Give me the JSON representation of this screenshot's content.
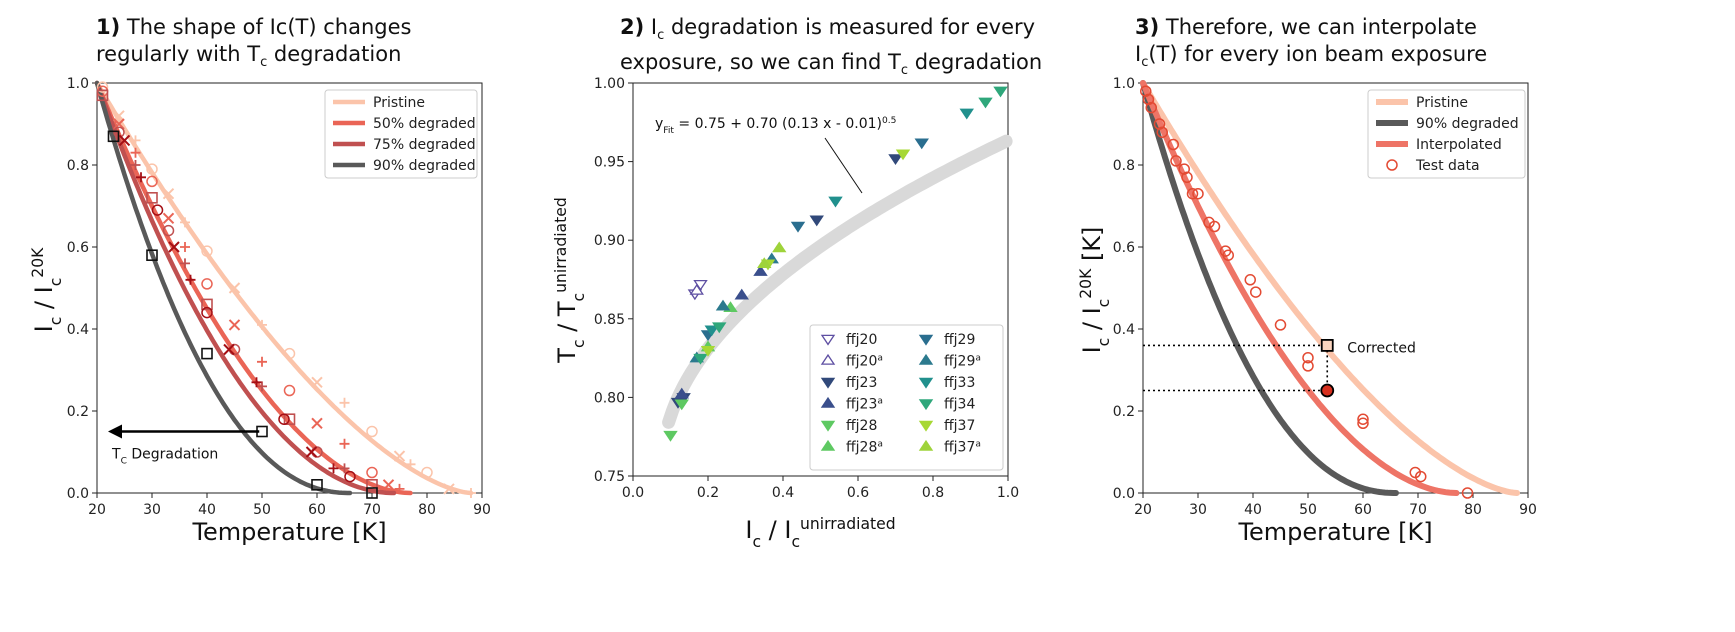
{
  "panels": [
    {
      "num": "1)",
      "line1": "The shape of Ic(T) changes",
      "line2": "regularly with T",
      "line2_sub": "c",
      "line2_end": " degradation"
    },
    {
      "num": "2)",
      "line1_a": "I",
      "line1_sub": "c",
      "line1_b": " degradation is measured for every",
      "line2": "exposure, so we can find T",
      "line2_sub": "c",
      "line2_end": " degradation"
    },
    {
      "num": "3)",
      "line1": "Therefore, we can interpolate",
      "line2": "I",
      "line2_sub": "c",
      "line2_end": "(T) for every ion beam exposure"
    }
  ],
  "chart_data": [
    {
      "type": "line",
      "xlabel": "Temperature [K]",
      "ylabel": "I_c / I_c^20K",
      "xlim": [
        20,
        90
      ],
      "ylim": [
        0,
        1.0
      ],
      "xticks": [
        "20",
        "30",
        "40",
        "50",
        "60",
        "70",
        "80",
        "90"
      ],
      "yticks": [
        "0.0",
        "0.2",
        "0.4",
        "0.6",
        "0.8",
        "1.0"
      ],
      "legend_position": "top-right",
      "annotation": {
        "text_main": "T",
        "text_sub": "C",
        "text_end": " Degradation"
      },
      "series": [
        {
          "name": "Pristine",
          "color": "#fbc4aa",
          "Tc": 88,
          "n": 1.55,
          "points": [
            [
              21,
              0.99
            ],
            [
              24,
              0.92
            ],
            [
              27,
              0.86
            ],
            [
              30,
              0.79
            ],
            [
              33,
              0.73
            ],
            [
              36,
              0.66
            ],
            [
              40,
              0.59
            ],
            [
              45,
              0.5
            ],
            [
              50,
              0.41
            ],
            [
              55,
              0.34
            ],
            [
              60,
              0.27
            ],
            [
              65,
              0.22
            ],
            [
              70,
              0.15
            ],
            [
              75,
              0.09
            ],
            [
              77,
              0.07
            ],
            [
              80,
              0.05
            ],
            [
              84,
              0.01
            ],
            [
              88,
              0.0
            ]
          ]
        },
        {
          "name": "50% degraded",
          "color": "#ea6556",
          "Tc": 77,
          "n": 1.85,
          "points": [
            [
              21,
              0.98
            ],
            [
              24,
              0.9
            ],
            [
              27,
              0.83
            ],
            [
              30,
              0.76
            ],
            [
              33,
              0.67
            ],
            [
              36,
              0.6
            ],
            [
              40,
              0.51
            ],
            [
              45,
              0.41
            ],
            [
              50,
              0.32
            ],
            [
              55,
              0.25
            ],
            [
              60,
              0.17
            ],
            [
              65,
              0.12
            ],
            [
              70,
              0.05
            ],
            [
              73,
              0.02
            ],
            [
              75,
              0.01
            ]
          ]
        },
        {
          "name": "75% degraded",
          "color": "#c05050",
          "Tc": 74,
          "n": 2.0,
          "points": [
            [
              21,
              0.97
            ],
            [
              24,
              0.88
            ],
            [
              27,
              0.8
            ],
            [
              30,
              0.72
            ],
            [
              33,
              0.64
            ],
            [
              36,
              0.56
            ],
            [
              40,
              0.46
            ],
            [
              45,
              0.35
            ],
            [
              50,
              0.26
            ],
            [
              55,
              0.18
            ],
            [
              60,
              0.1
            ],
            [
              65,
              0.06
            ],
            [
              70,
              0.02
            ]
          ]
        },
        {
          "name": "90% degraded",
          "color": "#595959",
          "Tc": 66,
          "n": 2.2,
          "points": [
            [
              23,
              0.87
            ],
            [
              30,
              0.58
            ],
            [
              40,
              0.34
            ],
            [
              50,
              0.15
            ],
            [
              60,
              0.02
            ],
            [
              70,
              0.0
            ]
          ]
        }
      ],
      "extra_marks": [
        {
          "color": "#a50f15",
          "points": [
            [
              25,
              0.86
            ],
            [
              28,
              0.77
            ],
            [
              31,
              0.69
            ],
            [
              34,
              0.6
            ],
            [
              37,
              0.52
            ],
            [
              40,
              0.44
            ],
            [
              44,
              0.35
            ],
            [
              49,
              0.27
            ],
            [
              54,
              0.18
            ],
            [
              59,
              0.1
            ],
            [
              63,
              0.06
            ],
            [
              66,
              0.04
            ]
          ]
        }
      ]
    },
    {
      "type": "scatter",
      "xlabel": "I_c / I_c^unirradiated",
      "ylabel": "T_c / T_c^unirradiated",
      "xlim": [
        0.0,
        1.0
      ],
      "ylim": [
        0.75,
        1.0
      ],
      "xticks": [
        "0.0",
        "0.2",
        "0.4",
        "0.6",
        "0.8",
        "1.0"
      ],
      "yticks": [
        "0.75",
        "0.80",
        "0.85",
        "0.90",
        "0.95",
        "1.00"
      ],
      "legend_position": "bottom-right",
      "fit_label": {
        "main": "y",
        "sub": "Fit",
        "rest": " = 0.75 + 0.70 (0.13 x - 0.01)",
        "sup": "0.5"
      },
      "series": [
        {
          "name": "ffj20",
          "sup": "",
          "marker": "down",
          "hollow": true,
          "color": "#5e4fa2",
          "points": [
            [
              0.165,
              0.866
            ],
            [
              0.18,
              0.872
            ]
          ]
        },
        {
          "name": "ffj20",
          "sup": "a",
          "marker": "up",
          "hollow": true,
          "color": "#5e4fa2",
          "points": [
            [
              0.17,
              0.868
            ]
          ]
        },
        {
          "name": "ffj23",
          "sup": "",
          "marker": "down",
          "hollow": false,
          "color": "#31497a",
          "points": [
            [
              0.12,
              0.797
            ],
            [
              0.135,
              0.8
            ],
            [
              0.49,
              0.913
            ],
            [
              0.7,
              0.952
            ]
          ]
        },
        {
          "name": "ffj23",
          "sup": "a",
          "marker": "up",
          "hollow": false,
          "color": "#3a4f8c",
          "points": [
            [
              0.13,
              0.802
            ],
            [
              0.29,
              0.865
            ],
            [
              0.34,
              0.88
            ]
          ]
        },
        {
          "name": "ffj28",
          "sup": "",
          "marker": "down",
          "hollow": false,
          "color": "#5ec962",
          "points": [
            [
              0.1,
              0.776
            ],
            [
              0.13,
              0.796
            ]
          ]
        },
        {
          "name": "ffj28",
          "sup": "a",
          "marker": "up",
          "hollow": false,
          "color": "#5ec962",
          "points": [
            [
              0.2,
              0.832
            ],
            [
              0.26,
              0.857
            ]
          ]
        },
        {
          "name": "ffj29",
          "sup": "",
          "marker": "down",
          "hollow": false,
          "color": "#2a6e8f",
          "points": [
            [
              0.2,
              0.84
            ],
            [
              0.44,
              0.909
            ],
            [
              0.77,
              0.962
            ]
          ]
        },
        {
          "name": "ffj29",
          "sup": "a",
          "marker": "up",
          "hollow": false,
          "color": "#2c7a8e",
          "points": [
            [
              0.17,
              0.825
            ],
            [
              0.24,
              0.858
            ],
            [
              0.37,
              0.888
            ]
          ]
        },
        {
          "name": "ffj33",
          "sup": "",
          "marker": "down",
          "hollow": false,
          "color": "#21908d",
          "points": [
            [
              0.21,
              0.843
            ],
            [
              0.54,
              0.925
            ],
            [
              0.89,
              0.981
            ]
          ]
        },
        {
          "name": "ffj34",
          "sup": "",
          "marker": "down",
          "hollow": false,
          "color": "#2fa77b",
          "points": [
            [
              0.18,
              0.825
            ],
            [
              0.23,
              0.845
            ],
            [
              0.94,
              0.988
            ],
            [
              0.98,
              0.995
            ]
          ]
        },
        {
          "name": "ffj37",
          "sup": "",
          "marker": "down",
          "hollow": false,
          "color": "#a7d835",
          "points": [
            [
              0.2,
              0.83
            ],
            [
              0.36,
              0.885
            ],
            [
              0.72,
              0.955
            ]
          ]
        },
        {
          "name": "ffj37",
          "sup": "a",
          "marker": "up",
          "hollow": false,
          "color": "#9ed33a",
          "points": [
            [
              0.35,
              0.885
            ],
            [
              0.39,
              0.895
            ]
          ]
        }
      ]
    },
    {
      "type": "line",
      "xlabel": "Temperature [K]",
      "ylabel": "I_c / I_c^20K [K]",
      "xlim": [
        20,
        90
      ],
      "ylim": [
        0,
        1.0
      ],
      "xticks": [
        "20",
        "30",
        "40",
        "50",
        "60",
        "70",
        "80",
        "90"
      ],
      "yticks": [
        "0.0",
        "0.2",
        "0.4",
        "0.6",
        "0.8",
        "1.0"
      ],
      "legend_position": "top-right",
      "annotation": {
        "text_main": "Corrected",
        "text_sub": "",
        "text_end": ""
      },
      "series": [
        {
          "name": "Pristine",
          "color": "#fbc4aa",
          "Tc": 88,
          "n": 1.55
        },
        {
          "name": "90% degraded",
          "color": "#595959",
          "Tc": 66,
          "n": 2.2
        },
        {
          "name": "Interpolated",
          "color": "#ee7466",
          "Tc": 77,
          "n": 1.85
        }
      ],
      "test_data": {
        "name": "Test data",
        "color": "#e34a33",
        "points": [
          [
            20.5,
            0.98
          ],
          [
            21,
            0.96
          ],
          [
            21.5,
            0.94
          ],
          [
            23,
            0.9
          ],
          [
            23.5,
            0.88
          ],
          [
            25.5,
            0.85
          ],
          [
            26,
            0.81
          ],
          [
            27.5,
            0.79
          ],
          [
            28,
            0.77
          ],
          [
            29,
            0.73
          ],
          [
            30,
            0.73
          ],
          [
            32,
            0.66
          ],
          [
            33,
            0.65
          ],
          [
            35,
            0.59
          ],
          [
            35.5,
            0.58
          ],
          [
            39.5,
            0.52
          ],
          [
            40.5,
            0.49
          ],
          [
            45,
            0.41
          ],
          [
            50,
            0.33
          ],
          [
            50,
            0.31
          ],
          [
            60,
            0.18
          ],
          [
            60,
            0.17
          ],
          [
            69.5,
            0.05
          ],
          [
            70.5,
            0.04
          ],
          [
            79,
            0.0
          ]
        ]
      },
      "corrected_point": {
        "x": 53.5,
        "y": 0.36
      },
      "measured_point": {
        "x": 53.5,
        "y": 0.25
      }
    }
  ]
}
